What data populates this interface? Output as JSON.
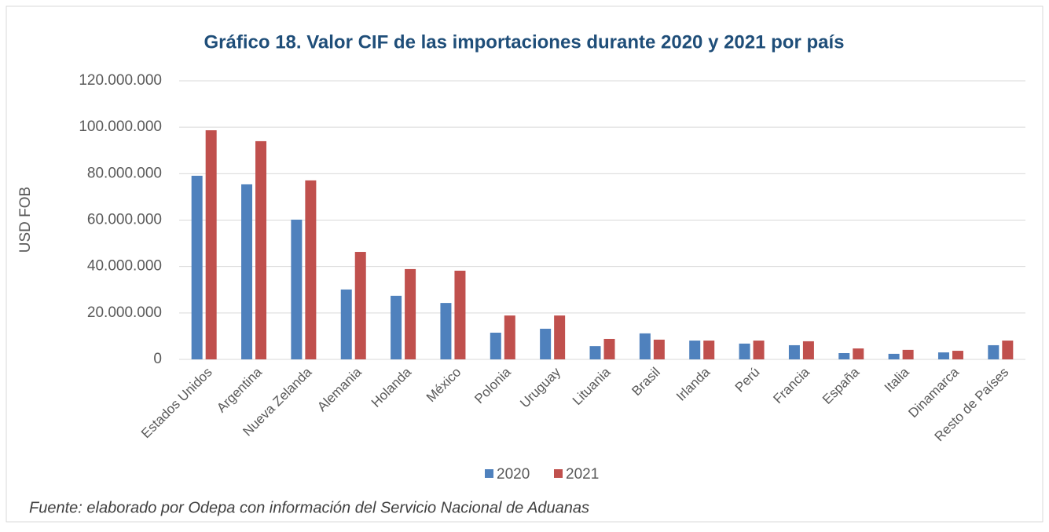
{
  "chart_data": {
    "type": "bar",
    "title": "Gráfico 18. Valor CIF de las importaciones durante 2020 y 2021 por país",
    "y_label": "USD FOB",
    "source": "Fuente: elaborado por Odepa con información del Servicio Nacional de Aduanas",
    "categories": [
      "Estados Unidos",
      "Argentina",
      "Nueva Zelanda",
      "Alemania",
      "Holanda",
      "México",
      "Polonia",
      "Uruguay",
      "Lituania",
      "Brasil",
      "Irlanda",
      "Perú",
      "Francia",
      "España",
      "Italia",
      "Dinamarca",
      "Resto de Países"
    ],
    "series": [
      {
        "name": "2020",
        "color": "#4f81bd",
        "values": [
          79100000,
          75400000,
          60200000,
          30100000,
          27400000,
          24300000,
          11500000,
          13200000,
          5700000,
          11200000,
          8100000,
          6800000,
          6100000,
          2700000,
          2400000,
          3000000,
          6100000
        ]
      },
      {
        "name": "2021",
        "color": "#c0504d",
        "values": [
          98700000,
          94000000,
          77100000,
          46300000,
          38900000,
          38200000,
          18900000,
          18900000,
          8800000,
          8500000,
          8100000,
          8100000,
          7800000,
          4700000,
          4100000,
          3700000,
          8100000
        ]
      }
    ],
    "ylim": [
      0,
      120000000
    ],
    "yticks": [
      0,
      {
        "value": 20000000,
        "label": "20.000.000"
      },
      {
        "value": 40000000,
        "label": "40.000.000"
      },
      {
        "value": 60000000,
        "label": "60.000.000"
      },
      {
        "value": 80000000,
        "label": "80.000.000"
      },
      {
        "value": 100000000,
        "label": "100.000.000"
      },
      {
        "value": 120000000,
        "label": "120.000.000"
      }
    ],
    "grid": true,
    "legend": "bottom"
  }
}
